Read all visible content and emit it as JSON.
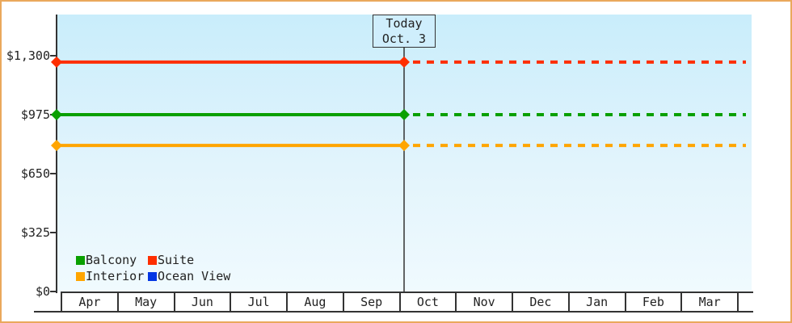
{
  "colors": {
    "frame_border": "#eaa85c",
    "axis": "#333333",
    "plot_gradient_top": "#c9edfb",
    "plot_gradient_bottom": "#f0fafe",
    "today_box_bg": "#cfeefc",
    "text": "#222222"
  },
  "chart_data": {
    "type": "line",
    "title": "",
    "description": "Flat cabin-price history lines; solid before today, dashed projection after today",
    "categories": [
      "Apr",
      "May",
      "Jun",
      "Jul",
      "Aug",
      "Sep",
      "Oct",
      "Nov",
      "Dec",
      "Jan",
      "Feb",
      "Mar"
    ],
    "yticks": [
      {
        "label": "$0",
        "value": 0
      },
      {
        "label": "$325",
        "value": 325
      },
      {
        "label": "$650",
        "value": 650
      },
      {
        "label": "$975",
        "value": 975
      },
      {
        "label": "$1,300",
        "value": 1300
      }
    ],
    "ylim": [
      0,
      1527
    ],
    "series": [
      {
        "name": "Balcony",
        "color": "#0aa000",
        "value": 975
      },
      {
        "name": "Suite",
        "color": "#fe2e00",
        "value": 1265
      },
      {
        "name": "Interior",
        "color": "#ffa500",
        "value": 805
      },
      {
        "name": "Ocean View",
        "color": "#0336e4",
        "value": null
      }
    ],
    "today": {
      "label": "Today",
      "date": "Oct. 3",
      "x_fraction": 0.5
    },
    "legend_position": "inside-bottom-left",
    "grid": false
  }
}
